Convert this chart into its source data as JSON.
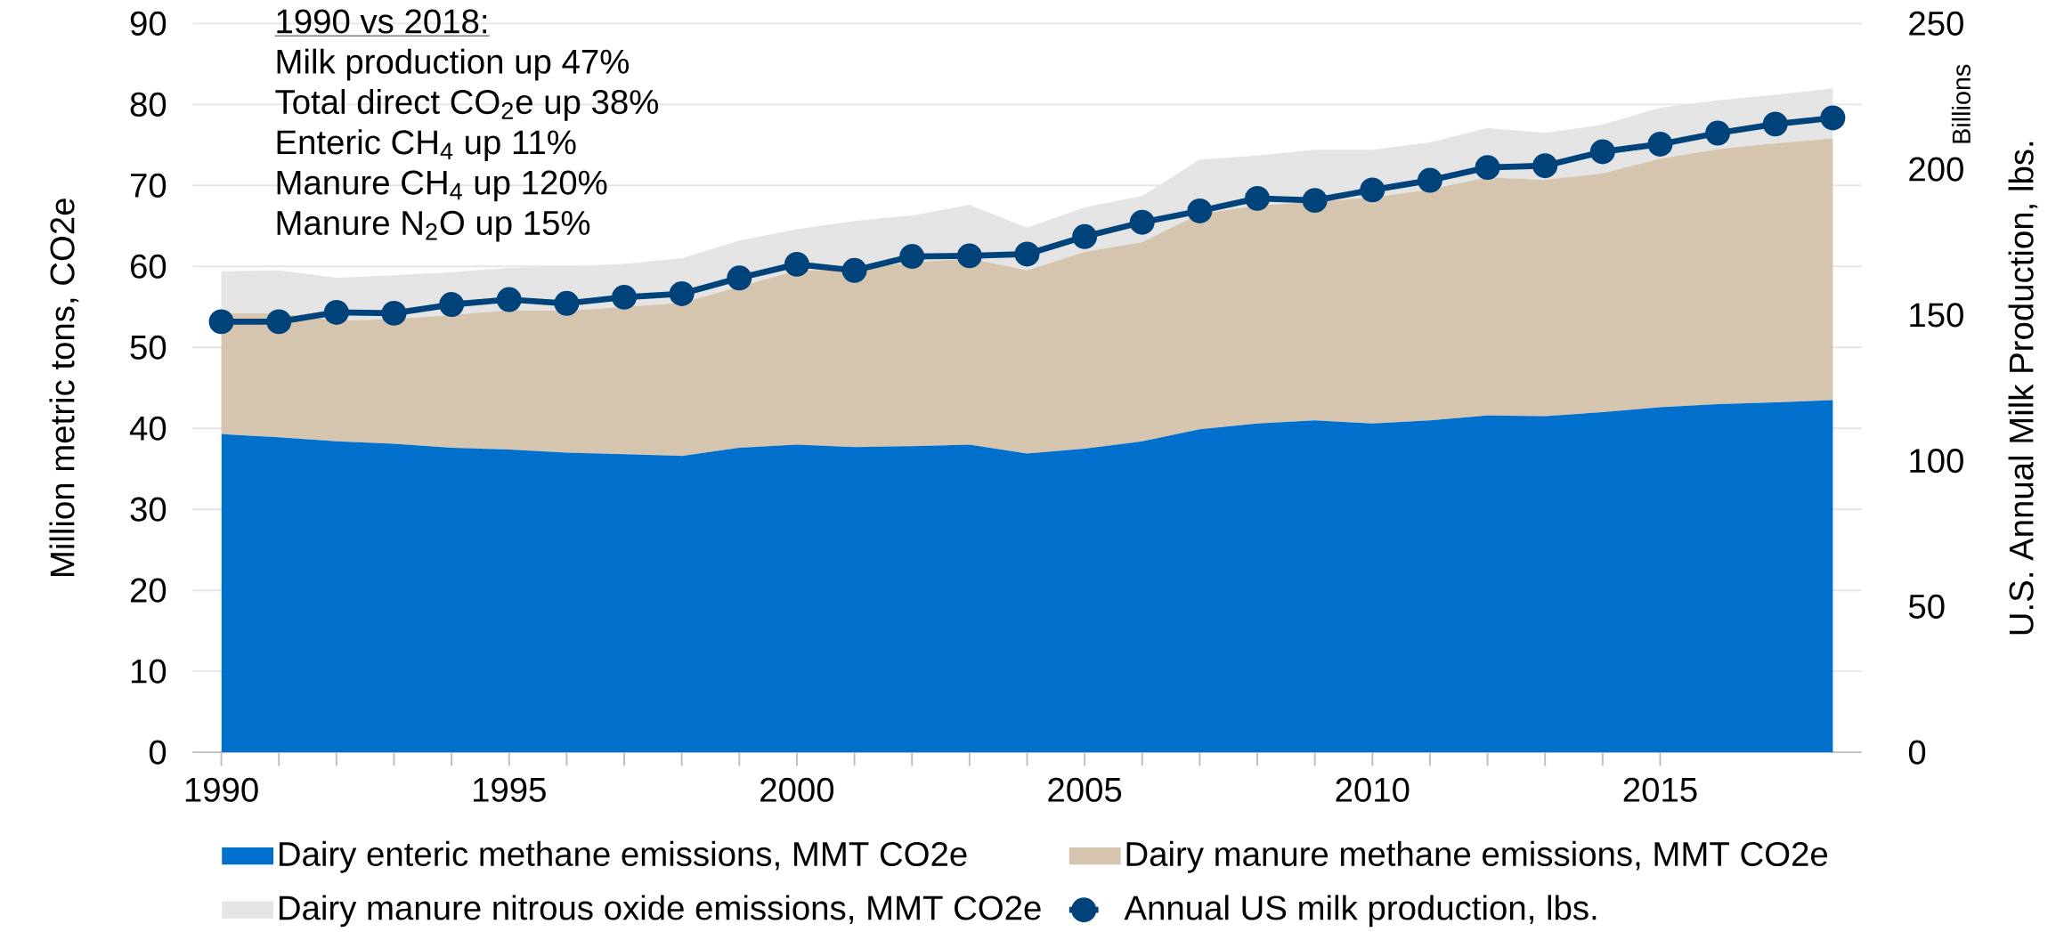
{
  "chart_data": {
    "type": "area",
    "stacked": true,
    "x": [
      1990,
      1991,
      1992,
      1993,
      1994,
      1995,
      1996,
      1997,
      1998,
      1999,
      2000,
      2001,
      2002,
      2003,
      2004,
      2005,
      2006,
      2007,
      2008,
      2009,
      2010,
      2011,
      2012,
      2013,
      2014,
      2015,
      2016,
      2017,
      2018
    ],
    "series": [
      {
        "name": "Dairy enteric methane emissions, MMT CO2e",
        "color": "#0070cc",
        "values": [
          39.3,
          38.9,
          38.4,
          38.1,
          37.6,
          37.4,
          37.0,
          36.8,
          36.6,
          37.6,
          38.0,
          37.7,
          37.8,
          38.0,
          36.9,
          37.5,
          38.4,
          39.9,
          40.6,
          41.0,
          40.6,
          41.0,
          41.6,
          41.5,
          42.0,
          42.6,
          43.0,
          43.2,
          43.5
        ]
      },
      {
        "name": "Dairy manure methane emissions, MMT CO2e",
        "color": "#d5c4ae",
        "values": [
          14.9,
          15.3,
          14.9,
          15.4,
          16.4,
          17.2,
          17.5,
          18.2,
          18.9,
          19.9,
          21.5,
          21.9,
          22.7,
          23.0,
          22.6,
          24.3,
          24.6,
          26.6,
          26.9,
          27.0,
          27.9,
          28.5,
          29.4,
          29.2,
          29.5,
          30.7,
          31.5,
          32.0,
          32.3
        ]
      },
      {
        "name": "Dairy manure nitrous oxide emissions, MMT CO2e",
        "color": "#e4e4e4",
        "values": [
          5.2,
          5.3,
          5.3,
          5.4,
          5.3,
          5.2,
          5.5,
          5.3,
          5.5,
          5.7,
          5.1,
          6.0,
          5.8,
          6.6,
          5.3,
          5.5,
          5.7,
          6.7,
          6.2,
          6.4,
          5.9,
          5.8,
          6.1,
          5.8,
          6.0,
          6.3,
          6.0,
          6.0,
          6.2
        ]
      },
      {
        "name": "Annual US milk production, lbs.",
        "type": "line",
        "axis": "y2",
        "marker": "circle",
        "color": "#00427a",
        "values": [
          147.7,
          147.7,
          150.9,
          150.6,
          153.6,
          155.3,
          154.0,
          156.1,
          157.3,
          162.7,
          167.4,
          165.3,
          170.1,
          170.3,
          170.9,
          176.9,
          181.8,
          185.7,
          190.0,
          189.3,
          192.9,
          196.2,
          200.6,
          201.2,
          206.0,
          208.6,
          212.4,
          215.5,
          217.6
        ]
      }
    ],
    "xlim": [
      1989.5,
      2018.5
    ],
    "xticks": [
      1990,
      1995,
      2000,
      2005,
      2010,
      2015
    ],
    "ylim": [
      0,
      90
    ],
    "yticks": [
      0,
      10,
      20,
      30,
      40,
      50,
      60,
      70,
      80,
      90
    ],
    "y2lim": [
      0,
      250
    ],
    "y2ticks": [
      0,
      50,
      100,
      150,
      200,
      250
    ],
    "ylabel": "Million metric tons, CO2e",
    "y2label": "U.S. Annual Milk Production, lbs.",
    "grid": "y",
    "legend": "bottom",
    "annotations": [
      "1990 vs 2018:",
      "Milk production up 47%",
      "Total direct CO$_{2}$e up 38%",
      "Enteric CH$_{4}$ up 11%",
      "Manure CH$_{4}$ up 120%",
      "Manure N$_{2}$O up 15%",
      "Billions"
    ]
  }
}
